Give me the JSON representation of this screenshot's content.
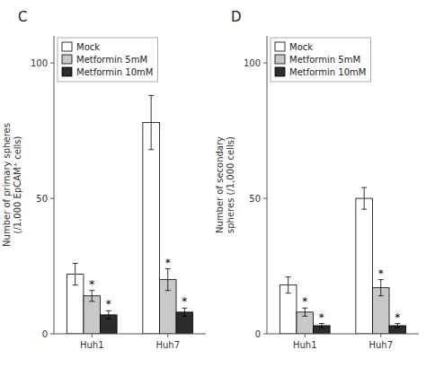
{
  "chart_data": [
    {
      "type": "bar",
      "title": "C",
      "y_label": "Number of primary spheres\n(/1,000 EpCAM⁺ cells)",
      "categories": [
        "Huh1",
        "Huh7"
      ],
      "series": [
        {
          "name": "Mock",
          "color": "#ffffff",
          "values": [
            22,
            78
          ],
          "errors": [
            4,
            10
          ]
        },
        {
          "name": "Metformin 5mM",
          "color": "#c8c8c8",
          "values": [
            14,
            20
          ],
          "errors": [
            2,
            4
          ]
        },
        {
          "name": "Metformin 10mM",
          "color": "#2c2c2c",
          "values": [
            7,
            8
          ],
          "errors": [
            1.5,
            1.5
          ]
        }
      ],
      "annotations": [
        {
          "text": "*",
          "category": "Huh1",
          "series": "Metformin 5mM"
        },
        {
          "text": "*",
          "category": "Huh1",
          "series": "Metformin 10mM"
        },
        {
          "text": "*",
          "category": "Huh7",
          "series": "Metformin 5mM"
        },
        {
          "text": "*",
          "category": "Huh7",
          "series": "Metformin 10mM"
        }
      ],
      "ylim": [
        0,
        110
      ],
      "yticks": [
        0,
        50,
        100
      ],
      "grid": false,
      "legend": "upper left"
    },
    {
      "type": "bar",
      "title": "D",
      "y_label": "Number of secondary\nspheres (/1,000 cells)",
      "categories": [
        "Huh1",
        "Huh7"
      ],
      "series": [
        {
          "name": "Mock",
          "color": "#ffffff",
          "values": [
            18,
            50
          ],
          "errors": [
            3,
            4
          ]
        },
        {
          "name": "Metformin 5mM",
          "color": "#c8c8c8",
          "values": [
            8,
            17
          ],
          "errors": [
            1.5,
            3
          ]
        },
        {
          "name": "Metformin 10mM",
          "color": "#2c2c2c",
          "values": [
            3,
            3
          ],
          "errors": [
            0.8,
            0.8
          ]
        }
      ],
      "annotations": [
        {
          "text": "*",
          "category": "Huh1",
          "series": "Metformin 5mM"
        },
        {
          "text": "*",
          "category": "Huh1",
          "series": "Metformin 10mM"
        },
        {
          "text": "*",
          "category": "Huh7",
          "series": "Metformin 5mM"
        },
        {
          "text": "*",
          "category": "Huh7",
          "series": "Metformin 10mM"
        }
      ],
      "ylim": [
        0,
        110
      ],
      "yticks": [
        0,
        50,
        100
      ],
      "grid": false,
      "legend": "upper left"
    }
  ]
}
